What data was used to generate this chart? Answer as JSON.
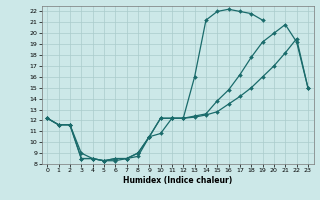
{
  "xlabel": "Humidex (Indice chaleur)",
  "background_color": "#cce8e8",
  "grid_color": "#aacccc",
  "line_color": "#1a6b6b",
  "xlim": [
    -0.5,
    23.5
  ],
  "ylim": [
    8,
    22.5
  ],
  "xticks": [
    0,
    1,
    2,
    3,
    4,
    5,
    6,
    7,
    8,
    9,
    10,
    11,
    12,
    13,
    14,
    15,
    16,
    17,
    18,
    19,
    20,
    21,
    22,
    23
  ],
  "yticks": [
    8,
    9,
    10,
    11,
    12,
    13,
    14,
    15,
    16,
    17,
    18,
    19,
    20,
    21,
    22
  ],
  "line1_x": [
    0,
    1,
    2,
    3,
    4,
    5,
    6,
    7,
    8,
    9,
    10,
    11,
    12,
    13,
    14,
    15,
    16,
    17,
    18,
    19,
    20,
    21
  ],
  "line1_y": [
    12.2,
    11.6,
    11.6,
    9.0,
    8.5,
    8.3,
    8.3,
    8.5,
    8.7,
    10.5,
    12.2,
    12.2,
    12.2,
    16.0,
    21.2,
    22.0,
    22.2,
    22.0,
    21.8,
    21.2,
    null,
    null
  ],
  "line2_x": [
    0,
    1,
    2,
    3,
    4,
    5,
    6,
    7,
    8,
    9,
    10,
    11,
    12,
    13,
    14,
    15,
    16,
    17,
    18,
    19,
    20,
    21,
    22,
    23
  ],
  "line2_y": [
    12.2,
    11.6,
    11.6,
    8.5,
    8.5,
    8.3,
    8.5,
    8.5,
    9.0,
    10.5,
    10.8,
    12.2,
    12.2,
    12.4,
    12.6,
    13.8,
    14.8,
    16.2,
    17.8,
    19.2,
    20.0,
    20.8,
    19.2,
    15.0
  ],
  "line3_x": [
    0,
    1,
    2,
    3,
    4,
    5,
    6,
    7,
    8,
    9,
    10,
    11,
    12,
    13,
    14,
    15,
    16,
    17,
    18,
    19,
    20,
    21,
    22,
    23
  ],
  "line3_y": [
    12.2,
    11.6,
    11.6,
    8.5,
    8.5,
    8.3,
    8.5,
    8.5,
    9.0,
    10.5,
    12.2,
    12.2,
    12.2,
    12.3,
    12.5,
    12.8,
    13.5,
    14.2,
    15.0,
    16.0,
    17.0,
    18.2,
    19.5,
    15.0
  ]
}
